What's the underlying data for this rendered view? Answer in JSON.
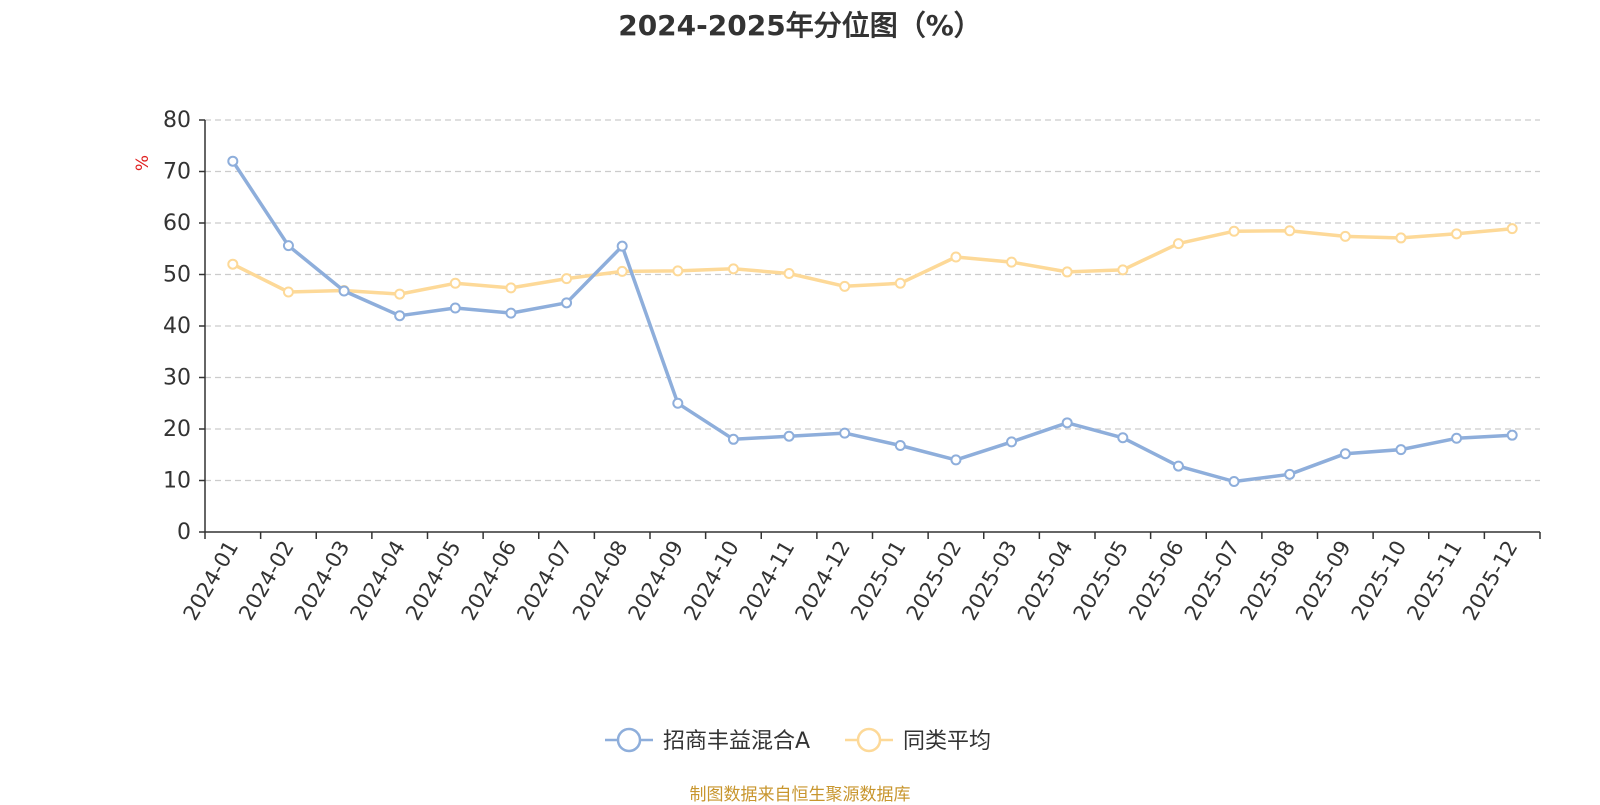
{
  "footer": {
    "source": "制图数据来自恒生聚源数据库"
  },
  "colors": {
    "series1": "#8eaedb",
    "series2": "#fdd998",
    "axis": "#333333",
    "grid": "#cccccc",
    "unit": "#e02020"
  },
  "chart_data": {
    "type": "line",
    "title": "2024-2025年分位图（%）",
    "ylabel": "%",
    "xlabel": "",
    "ylim": [
      0,
      80
    ],
    "yticks": [
      0,
      10,
      20,
      30,
      40,
      50,
      60,
      70,
      80
    ],
    "grid": true,
    "legend_position": "bottom-center",
    "categories": [
      "2024-01",
      "2024-02",
      "2024-03",
      "2024-04",
      "2024-05",
      "2024-06",
      "2024-07",
      "2024-08",
      "2024-09",
      "2024-10",
      "2024-11",
      "2024-12",
      "2025-01",
      "2025-02",
      "2025-03",
      "2025-04",
      "2025-05",
      "2025-06",
      "2025-07",
      "2025-08",
      "2025-09",
      "2025-10",
      "2025-11",
      "2025-12"
    ],
    "series": [
      {
        "name": "招商丰益混合A",
        "color": "#8eaedb",
        "values": [
          72.0,
          55.6,
          46.8,
          42.0,
          43.5,
          42.5,
          44.5,
          55.5,
          25.0,
          18.0,
          18.6,
          19.2,
          16.8,
          14.0,
          17.5,
          21.2,
          18.3,
          12.8,
          9.8,
          11.2,
          15.2,
          16.0,
          18.2,
          18.8
        ]
      },
      {
        "name": "同类平均",
        "color": "#fdd998",
        "values": [
          52.0,
          46.6,
          46.9,
          46.2,
          48.3,
          47.4,
          49.2,
          50.6,
          50.7,
          51.1,
          50.2,
          47.7,
          48.3,
          53.4,
          52.4,
          50.5,
          50.9,
          56.0,
          58.4,
          58.5,
          57.4,
          57.1,
          57.9,
          58.9
        ]
      }
    ]
  }
}
